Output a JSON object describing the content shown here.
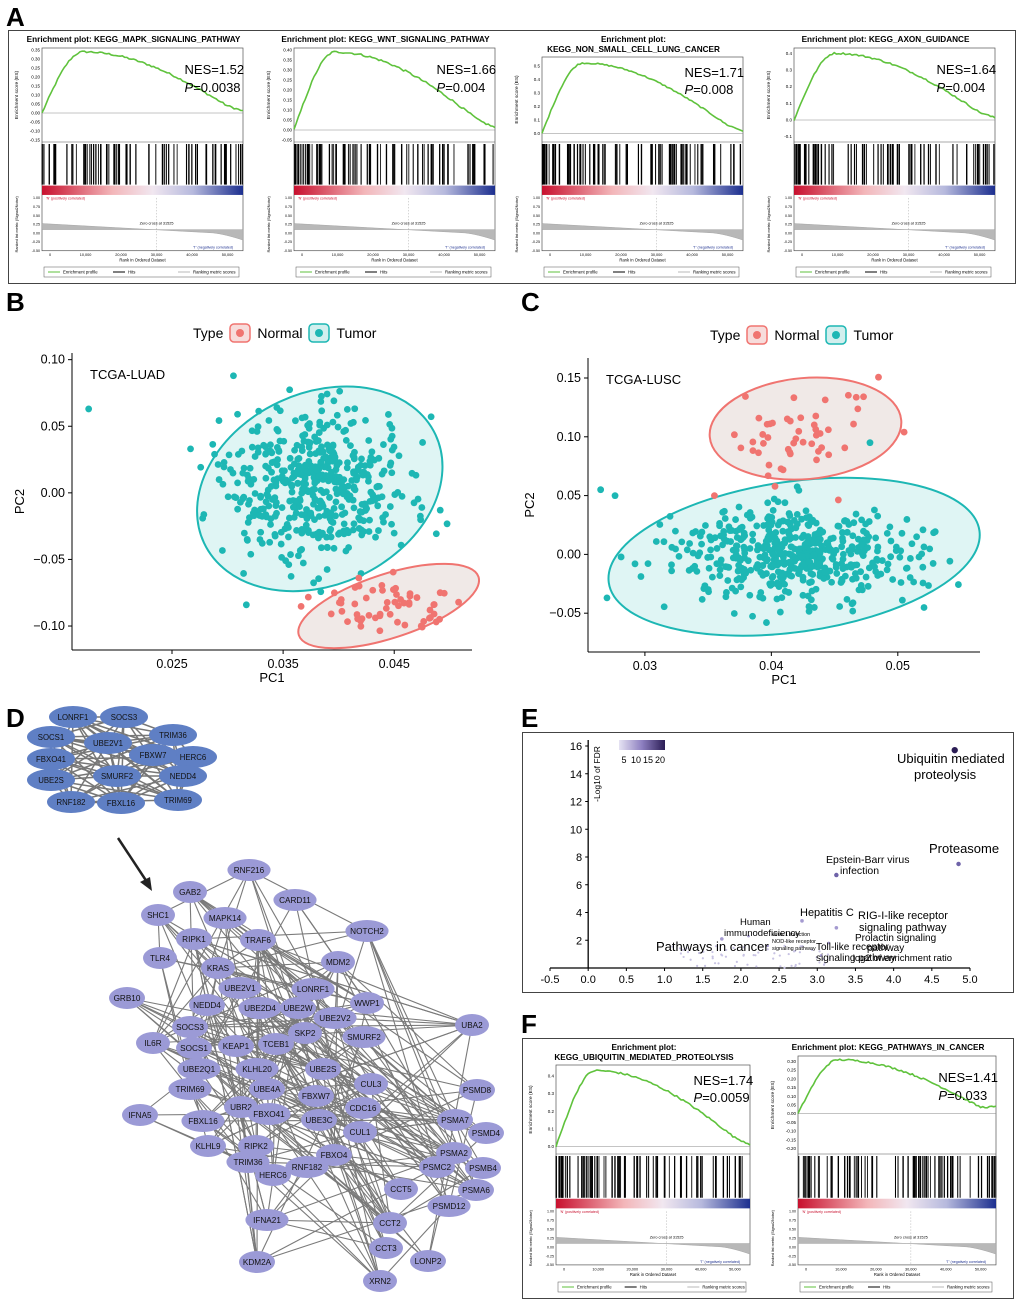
{
  "panels": {
    "A": "A",
    "B": "B",
    "C": "C",
    "D": "D",
    "E": "E",
    "F": "F"
  },
  "gsea_common": {
    "ylabel_es": "Enrichment score (ES)",
    "ylabel_rank": "Ranked list metric (Signal2Noise)",
    "xlabel": "Rank in Ordered Dataset",
    "pos_label": "'N' (positively correlated)",
    "neg_label": "'T' (negatively correlated)",
    "zero_cross": "Zero cross at 31525",
    "legend": [
      "Enrichment profile",
      "Hits",
      "Ranking metric scores"
    ],
    "x_ticks": [
      "0",
      "10,000",
      "20,000",
      "30,000",
      "40,000",
      "50,000"
    ],
    "rank_ticks": [
      "1.00",
      "0.75",
      "0.50",
      "0.25",
      "0.00",
      "-0.25",
      "-0.50"
    ]
  },
  "gsea_plots": [
    {
      "title1": "Enrichment plot: KEGG_MAPK_SIGNALING_PATHWAY",
      "title2": "",
      "nes": "NES=1.52",
      "p_label": "P",
      "p_value": "=0.0038",
      "es_ticks": [
        "0.35",
        "0.30",
        "0.25",
        "0.20",
        "0.15",
        "0.10",
        "0.05",
        "0.00",
        "-0.05",
        "-0.10",
        "-0.15"
      ],
      "es_range": [
        -0.15,
        0.35
      ],
      "peak": 0.34,
      "end": 0.0
    },
    {
      "title1": "Enrichment plot: KEGG_WNT_SIGNALING_PATHWAY",
      "title2": "",
      "nes": "NES=1.66",
      "p_label": "P",
      "p_value": "=0.004",
      "es_ticks": [
        "0.40",
        "0.35",
        "0.30",
        "0.25",
        "0.20",
        "0.15",
        "0.10",
        "0.05",
        "0.00",
        "-0.05"
      ],
      "es_range": [
        -0.05,
        0.4
      ],
      "peak": 0.39,
      "end": 0.0
    },
    {
      "title1": "Enrichment plot:",
      "title2": "KEGG_NON_SMALL_CELL_LUNG_CANCER",
      "nes": "NES=1.71",
      "p_label": "P",
      "p_value": "=0.008",
      "es_ticks": [
        "0.5",
        "0.4",
        "0.3",
        "0.2",
        "0.1",
        "0.0"
      ],
      "es_range": [
        -0.05,
        0.55
      ],
      "peak": 0.52,
      "end": 0.0
    },
    {
      "title1": "Enrichment plot: KEGG_AXON_GUIDANCE",
      "title2": "",
      "nes": "NES=1.64",
      "p_label": "P",
      "p_value": "=0.004",
      "es_ticks": [
        "0.4",
        "0.3",
        "0.2",
        "0.1",
        "0.0",
        "-0.1"
      ],
      "es_range": [
        -0.12,
        0.42
      ],
      "peak": 0.4,
      "end": 0.0
    },
    {
      "title1": "Enrichment plot:",
      "title2": "KEGG_UBIQUITIN_MEDIATED_PROTEOLYSIS",
      "nes": "NES=1.74",
      "p_label": "P",
      "p_value": "=0.0059",
      "es_ticks": [
        "0.4",
        "0.3",
        "0.2",
        "0.1",
        "0.0"
      ],
      "es_range": [
        -0.03,
        0.45
      ],
      "peak": 0.43,
      "end": 0.0
    },
    {
      "title1": "Enrichment plot: KEGG_PATHWAYS_IN_CANCER",
      "title2": "",
      "nes": "NES=1.41",
      "p_label": "P",
      "p_value": "=0.033",
      "es_ticks": [
        "0.30",
        "0.25",
        "0.20",
        "0.15",
        "0.10",
        "0.05",
        "0.00",
        "-0.05",
        "-0.10",
        "-0.15",
        "-0.20"
      ],
      "es_range": [
        -0.22,
        0.32
      ],
      "peak": 0.31,
      "end": 0.0
    }
  ],
  "pca_legend": {
    "title": "Type",
    "normal": "Normal",
    "tumor": "Tumor",
    "normal_color": "#F07470",
    "tumor_color": "#1DB7B4"
  },
  "chart_data": [
    {
      "type": "scatter",
      "title": "TCGA-LUAD",
      "xlabel": "PC1",
      "ylabel": "PC2",
      "xlim": [
        0.016,
        0.052
      ],
      "ylim": [
        -0.118,
        0.105
      ],
      "x_ticks": [
        0.025,
        0.035,
        0.045
      ],
      "x_tick_labels": [
        "0.025",
        "0.035",
        "0.045"
      ],
      "y_ticks": [
        0.1,
        0.05,
        0.0,
        -0.05,
        -0.1
      ],
      "y_tick_labels": [
        "0.10",
        "0.05",
        "0.00",
        "−0.05",
        "−0.10"
      ],
      "series": [
        {
          "name": "Normal",
          "n": 60,
          "center": [
            0.0445,
            -0.085
          ],
          "spread": [
            0.0035,
            0.013
          ],
          "ellipse": {
            "cx": 0.0445,
            "cy": -0.085,
            "rx": 0.0085,
            "ry": 0.024,
            "rot": -18
          }
        },
        {
          "name": "Tumor",
          "n": 500,
          "center": [
            0.038,
            0.005
          ],
          "spread": [
            0.0042,
            0.027
          ],
          "ellipse": {
            "cx": 0.0383,
            "cy": 0.003,
            "rx": 0.0115,
            "ry": 0.072,
            "rot": -25
          }
        }
      ],
      "outliers": [
        [
          0.0175,
          0.063
        ]
      ]
    },
    {
      "type": "scatter",
      "title": "TCGA-LUSC",
      "xlabel": "PC1",
      "ylabel": "PC2",
      "xlim": [
        0.0255,
        0.0565
      ],
      "ylim": [
        -0.083,
        0.167
      ],
      "x_ticks": [
        0.03,
        0.04,
        0.05
      ],
      "x_tick_labels": [
        "0.03",
        "0.04",
        "0.05"
      ],
      "y_ticks": [
        0.15,
        0.1,
        0.05,
        0.0,
        -0.05
      ],
      "y_tick_labels": [
        "0.15",
        "0.10",
        "0.05",
        "0.00",
        "−0.05"
      ],
      "series": [
        {
          "name": "Normal",
          "n": 50,
          "center": [
            0.0425,
            0.105
          ],
          "spread": [
            0.0025,
            0.018
          ],
          "ellipse": {
            "cx": 0.0427,
            "cy": 0.107,
            "rx": 0.0076,
            "ry": 0.043,
            "rot": -5
          }
        },
        {
          "name": "Tumor",
          "n": 500,
          "center": [
            0.0418,
            0.0
          ],
          "spread": [
            0.0045,
            0.02
          ],
          "ellipse": {
            "cx": 0.0418,
            "cy": -0.002,
            "rx": 0.0148,
            "ry": 0.064,
            "rot": -8
          }
        }
      ],
      "outliers": [
        [
          0.0265,
          0.055
        ],
        [
          0.027,
          -0.037
        ],
        [
          0.0355,
          0.05
        ],
        [
          0.0505,
          0.104
        ],
        [
          0.0478,
          0.095
        ]
      ]
    },
    {
      "type": "scatter",
      "title": "",
      "xlabel": "log2 of enrichment ratio",
      "ylabel": "-Log10 of FDR",
      "xlim": [
        -0.5,
        5.0
      ],
      "ylim": [
        -0.3,
        16.5
      ],
      "x_ticks": [
        -0.5,
        0.0,
        0.5,
        1.0,
        1.5,
        2.0,
        2.5,
        3.0,
        3.5,
        4.0,
        4.5,
        5.0
      ],
      "x_tick_labels": [
        "-0.5",
        "0.0",
        "0.5",
        "1.0",
        "1.5",
        "2.0",
        "2.5",
        "3.0",
        "3.5",
        "4.0",
        "4.5",
        "5.0"
      ],
      "y_ticks": [
        2,
        4,
        6,
        8,
        10,
        12,
        14,
        16
      ],
      "y_tick_labels": [
        "2",
        "4",
        "6",
        "8",
        "10",
        "12",
        "14",
        "16"
      ],
      "colorbar": {
        "ticks": [
          "5",
          "10",
          "15",
          "20"
        ],
        "low": "#E6E3F3",
        "high": "#2B1D55"
      },
      "points": [
        {
          "x": 4.8,
          "y": 15.7,
          "size": 7,
          "label": "Ubiquitin mediated proteolysis"
        },
        {
          "x": 4.85,
          "y": 7.5,
          "size": 5,
          "label": "Proteasome"
        },
        {
          "x": 3.25,
          "y": 6.7,
          "size": 5,
          "label": "Epstein-Barr virus infection"
        },
        {
          "x": 2.8,
          "y": 3.4,
          "size": 4,
          "label": "Hepatitis C"
        },
        {
          "x": 3.25,
          "y": 2.9,
          "size": 4,
          "label": "RIG-I-like receptor signaling pathway"
        },
        {
          "x": 3.15,
          "y": 1.8,
          "size": 3,
          "label": "Prolactin signaling pathway"
        },
        {
          "x": 3.05,
          "y": 0.9,
          "size": 3,
          "label": "Toll-like receptor signaling pathway"
        },
        {
          "x": 1.75,
          "y": 2.1,
          "size": 4,
          "label": "Pathways in cancer"
        },
        {
          "x": 2.1,
          "y": 2.3,
          "size": 3,
          "label": "Human immunodeficiency virus 1 infection"
        },
        {
          "x": 2.35,
          "y": 1.6,
          "size": 3,
          "label": "NOD-like receptor signaling pathway"
        }
      ],
      "labels": {
        "ubiquitin1": "Ubiquitin mediated",
        "ubiquitin2": "proteolysis",
        "proteasome": "Proteasome",
        "ebv1": "Epstein-Barr virus",
        "ebv2": "infection",
        "hepc": "Hepatitis C",
        "rig1": "RIG-I-like receptor",
        "rig2": "signaling pathway",
        "prl1": "Prolactin signaling",
        "prl2": "pathway",
        "tlr1": "Toll-like receptor",
        "tlr2": "signaling pathway",
        "cancer": "Pathways in cancer",
        "hiv1": "Human",
        "hiv2": "immunodeficiency",
        "hiv3": "virus 1 infection",
        "nod1": "NOD-like receptor",
        "nod2": "signaling pathway"
      }
    }
  ],
  "network": {
    "top_nodes": [
      "LONRF1",
      "SOCS3",
      "TRIM36",
      "SOCS1",
      "UBE2V1",
      "HERC6",
      "FBXO41",
      "FBXW7",
      "SMURF2",
      "NEDD4",
      "UBE2S",
      "TRIM69",
      "RNF182",
      "FBXL16"
    ],
    "main_nodes": [
      "RNF216",
      "GAB2",
      "CARD11",
      "SHC1",
      "MAPK14",
      "RIPK1",
      "TRAF6",
      "NOTCH2",
      "TLR4",
      "KRAS",
      "MDM2",
      "GRB10",
      "UBE2V1",
      "LONRF1",
      "NEDD4",
      "UBE2D4",
      "UBE2W",
      "UBE2V2",
      "WWP1",
      "UBA2",
      "IL6R",
      "SOCS3",
      "SKP2",
      "SMURF2",
      "SOCS1",
      "KEAP1",
      "TCEB1",
      "UBE2Q1",
      "KLHL20",
      "UBE2S",
      "CUL3",
      "TRIM69",
      "UBE4A",
      "UBR2",
      "FBXW7",
      "CDC16",
      "PSMD8",
      "FBXO41",
      "PSMA7",
      "FBXL16",
      "UBE3C",
      "CUL1",
      "PSMD4",
      "IFNA5",
      "KLHL9",
      "RIPK2",
      "FBXO4",
      "PSMA2",
      "TRIM36",
      "RNF182",
      "PSMC2",
      "PSMB4",
      "HERC6",
      "PSMA6",
      "PSMD12",
      "CCT5",
      "IFNA21",
      "CCT2",
      "CCT3",
      "LONP2",
      "KDM2A",
      "XRN2"
    ]
  }
}
